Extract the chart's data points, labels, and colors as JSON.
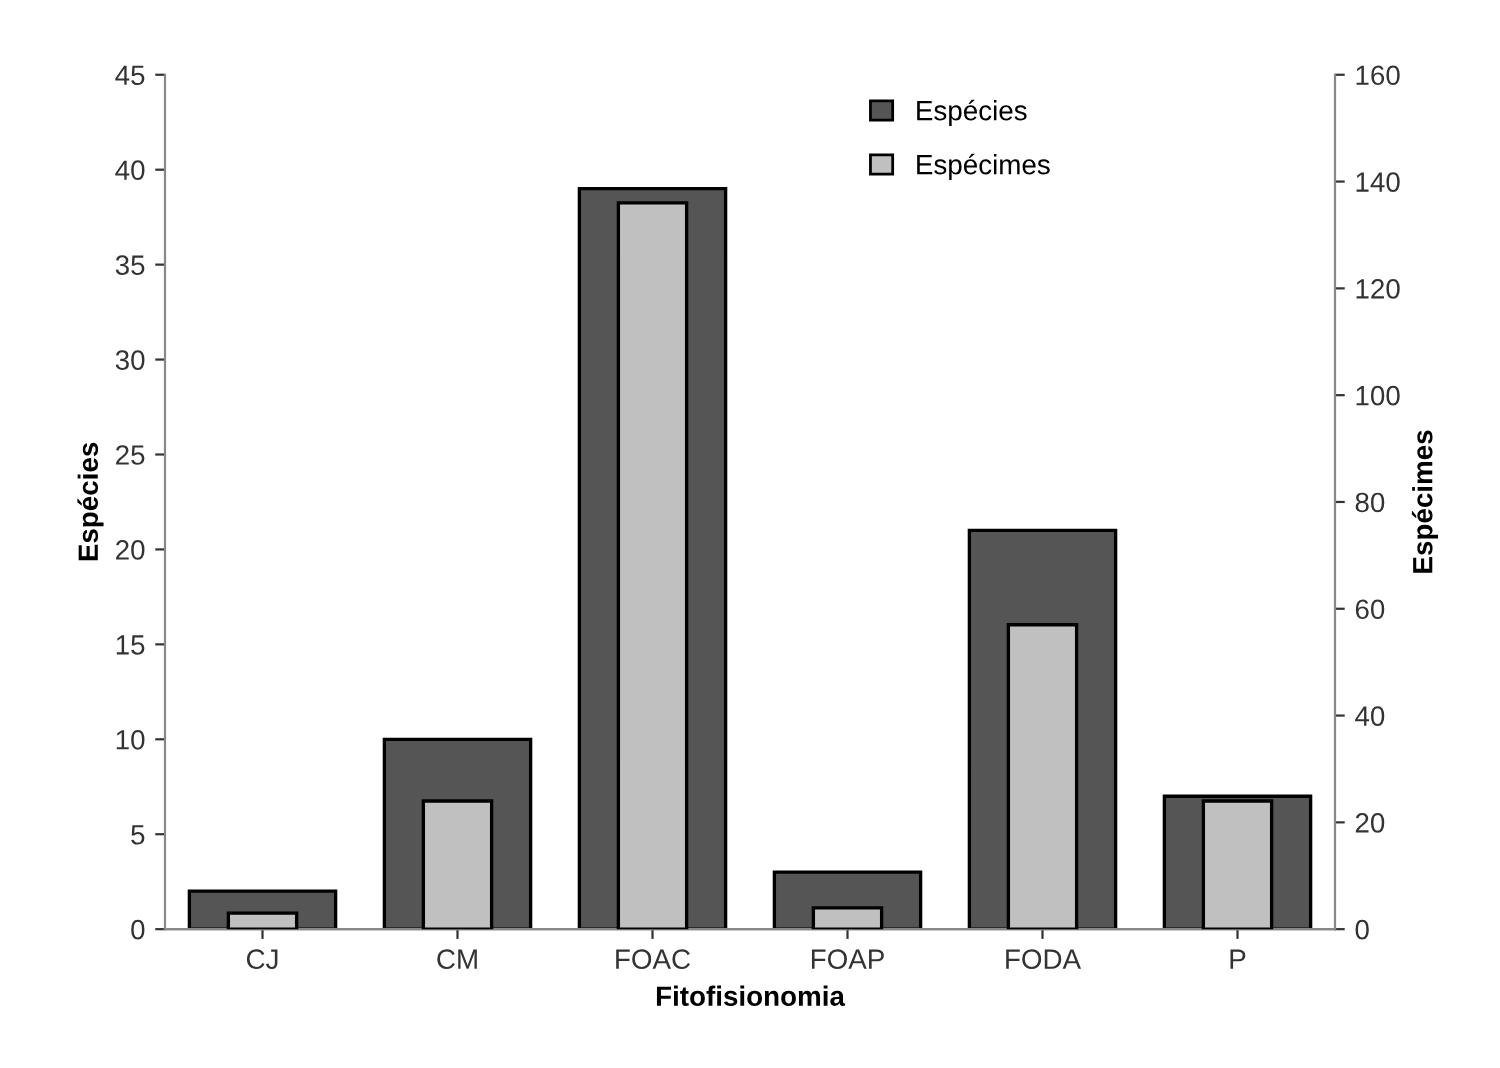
{
  "chart_data": {
    "type": "bar",
    "xlabel": "Fitofisionomia",
    "ylabel": "Espécies",
    "y2label": "Espécimes",
    "categories": [
      "CJ",
      "CM",
      "FOAC",
      "FOAP",
      "FODA",
      "P"
    ],
    "series": [
      {
        "name": "Espécies",
        "color": "#555555",
        "values": [
          2,
          10,
          39,
          3,
          21,
          7
        ]
      },
      {
        "name": "Espécimes",
        "color": "#c0c0c0",
        "axis": "y2",
        "values": [
          3,
          24,
          136,
          4,
          57,
          24
        ]
      }
    ],
    "ylim": [
      0,
      45
    ],
    "yticks": [
      0,
      5,
      10,
      15,
      20,
      25,
      30,
      35,
      40,
      45
    ],
    "y2lim": [
      0,
      160
    ],
    "y2ticks": [
      0,
      20,
      40,
      60,
      80,
      100,
      120,
      140,
      160
    ],
    "grid": false,
    "legend": "top"
  }
}
